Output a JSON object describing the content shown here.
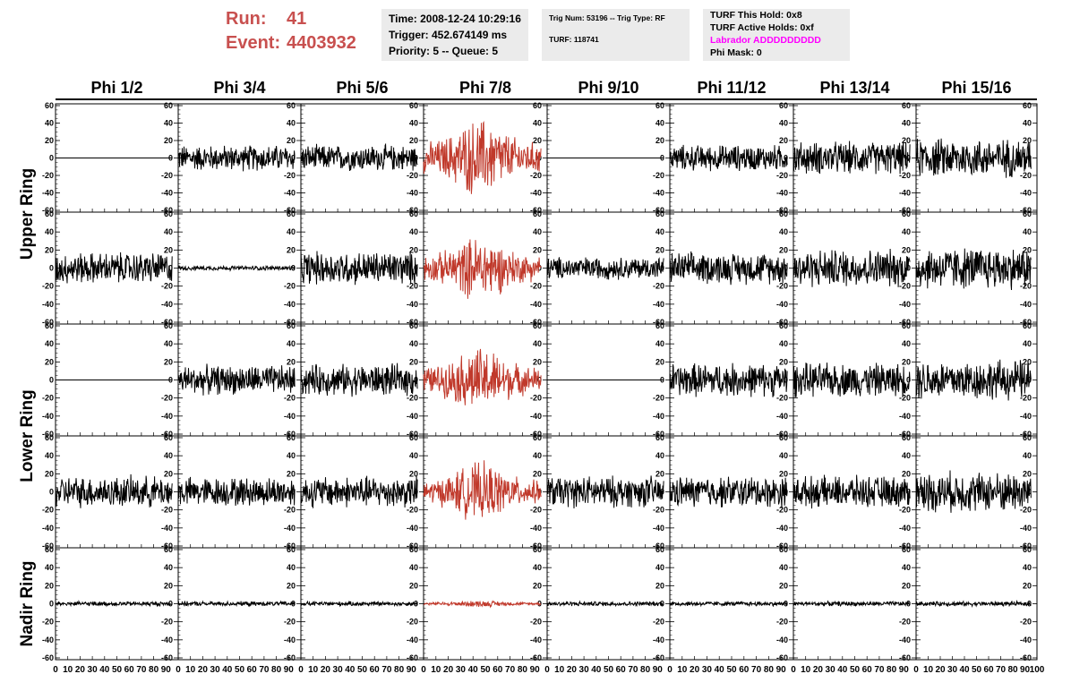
{
  "header": {
    "run_label": "Run:",
    "run_value": "41",
    "event_label": "Event:",
    "event_value": "4403932",
    "time": "Time: 2008-12-24 10:29:16",
    "trigger": "Trigger: 452.674149 ms",
    "priority": "Priority: 5 -- Queue: 5",
    "trig_num": "Trig Num: 53196 -- Trig Type: RF",
    "turf": "TURF: 118741",
    "turf_this_hold": "TURF This Hold: 0x8",
    "turf_active_holds": "TURF Active Holds: 0xf",
    "labrador": "Labrador ADDDDDDDDD",
    "phi_mask": "Phi Mask: 0"
  },
  "colors": {
    "run_text": "#c8504f",
    "labrador_text": "#ff00ff",
    "highlight_trace": "#c0392b",
    "trace": "#000000",
    "info_background": "#ebebeb"
  },
  "chart_data": {
    "type": "line",
    "columns": [
      "Phi 1/2",
      "Phi 3/4",
      "Phi 5/6",
      "Phi 7/8",
      "Phi 9/10",
      "Phi 11/12",
      "Phi 13/14",
      "Phi 15/16"
    ],
    "rings": [
      "Upper Ring",
      "Lower Ring",
      "Nadir Ring"
    ],
    "highlight_column": "Phi 7/8",
    "xlim": [
      0,
      100
    ],
    "ylim": [
      -60,
      60
    ],
    "y_ticks": [
      -60,
      -40,
      -20,
      0,
      20,
      40,
      60
    ],
    "x_ticks": [
      "0",
      "10",
      "20",
      "30",
      "40",
      "50",
      "60",
      "70",
      "80",
      "90",
      "100"
    ],
    "panel_rows": [
      {
        "ring": "Upper Ring",
        "amplitudes": [
          0,
          12,
          12,
          25,
          0,
          12,
          15,
          18
        ]
      },
      {
        "ring": "Upper Ring",
        "amplitudes": [
          14,
          2,
          15,
          20,
          10,
          14,
          17,
          19
        ]
      },
      {
        "ring": "Lower Ring",
        "amplitudes": [
          0,
          13,
          14,
          20,
          0,
          15,
          15,
          18
        ]
      },
      {
        "ring": "Lower Ring",
        "amplitudes": [
          14,
          13,
          14,
          18,
          14,
          14,
          14,
          18
        ]
      },
      {
        "ring": "Nadir Ring",
        "amplitudes": [
          2,
          2,
          2,
          2,
          2,
          2,
          2,
          2
        ]
      }
    ]
  }
}
